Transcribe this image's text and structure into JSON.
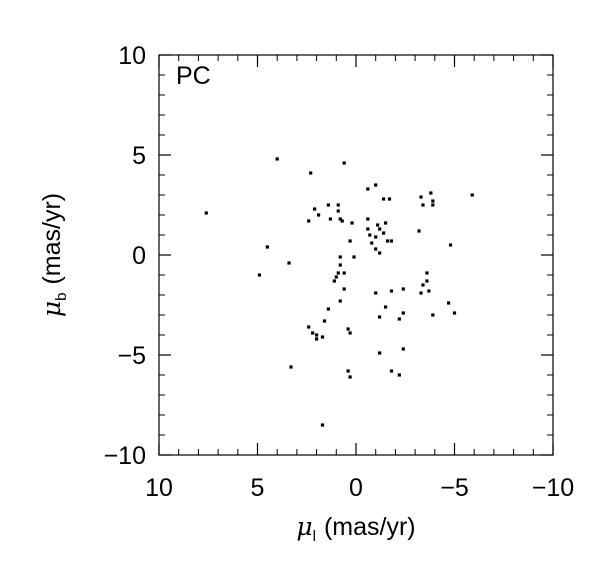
{
  "chart_data": {
    "type": "scatter",
    "panel_label": "PC",
    "xlabel": {
      "symbol": "μ",
      "subscript": "l",
      "unit": "(mas/yr)"
    },
    "ylabel": {
      "symbol": "μ",
      "subscript": "b",
      "unit": "(mas/yr)"
    },
    "xlim": [
      10,
      -10
    ],
    "ylim": [
      -10,
      10
    ],
    "x_ticks": [
      10,
      5,
      0,
      -5,
      -10
    ],
    "x_tick_labels": [
      "10",
      "5",
      "0",
      "−5",
      "−10"
    ],
    "y_ticks": [
      -10,
      -5,
      0,
      5,
      10
    ],
    "y_tick_labels": [
      "−10",
      "−5",
      "0",
      "5",
      "10"
    ],
    "grid": false,
    "marker_color": "#000000",
    "points": [
      [
        7.6,
        2.1
      ],
      [
        4.0,
        4.8
      ],
      [
        2.3,
        4.1
      ],
      [
        0.6,
        4.6
      ],
      [
        -0.6,
        3.3
      ],
      [
        -1.0,
        3.5
      ],
      [
        -1.4,
        2.8
      ],
      [
        -1.7,
        2.8
      ],
      [
        -3.3,
        2.9
      ],
      [
        -3.4,
        2.5
      ],
      [
        -3.8,
        3.1
      ],
      [
        -3.9,
        2.7
      ],
      [
        -3.9,
        2.5
      ],
      [
        -5.9,
        3.0
      ],
      [
        4.5,
        0.4
      ],
      [
        4.9,
        -1.0
      ],
      [
        3.4,
        -0.4
      ],
      [
        2.4,
        1.7
      ],
      [
        2.1,
        2.3
      ],
      [
        1.9,
        2.0
      ],
      [
        1.4,
        2.5
      ],
      [
        1.3,
        1.8
      ],
      [
        0.9,
        2.5
      ],
      [
        0.9,
        2.2
      ],
      [
        0.8,
        1.8
      ],
      [
        0.7,
        1.7
      ],
      [
        0.2,
        1.6
      ],
      [
        0.3,
        0.7
      ],
      [
        0.1,
        -0.1
      ],
      [
        -0.6,
        1.8
      ],
      [
        -0.6,
        1.3
      ],
      [
        -0.7,
        1.0
      ],
      [
        -0.8,
        0.6
      ],
      [
        -1.0,
        0.9
      ],
      [
        -1.1,
        1.5
      ],
      [
        -1.2,
        1.3
      ],
      [
        -1.4,
        1.1
      ],
      [
        -1.5,
        1.6
      ],
      [
        -1.6,
        0.7
      ],
      [
        -1.8,
        0.7
      ],
      [
        -1.0,
        0.3
      ],
      [
        -1.2,
        0.1
      ],
      [
        -3.2,
        1.2
      ],
      [
        -4.8,
        0.5
      ],
      [
        0.8,
        -0.1
      ],
      [
        0.8,
        -0.5
      ],
      [
        0.9,
        -0.9
      ],
      [
        1.0,
        -1.1
      ],
      [
        1.1,
        -1.3
      ],
      [
        0.6,
        -0.9
      ],
      [
        0.6,
        -1.7
      ],
      [
        0.8,
        -2.3
      ],
      [
        0.4,
        -3.7
      ],
      [
        -1.0,
        -1.9
      ],
      [
        -1.8,
        -1.8
      ],
      [
        -2.4,
        -1.7
      ],
      [
        -3.4,
        -1.5
      ],
      [
        -3.6,
        -1.3
      ],
      [
        -3.6,
        -0.9
      ],
      [
        -3.7,
        -1.8
      ],
      [
        -3.3,
        -1.9
      ],
      [
        -4.7,
        -2.4
      ],
      [
        -5.0,
        -2.9
      ],
      [
        -3.9,
        -3.0
      ],
      [
        -1.5,
        -2.6
      ],
      [
        -2.2,
        -3.2
      ],
      [
        -2.4,
        -2.9
      ],
      [
        -1.2,
        -3.1
      ],
      [
        1.4,
        -2.7
      ],
      [
        1.6,
        -3.3
      ],
      [
        2.4,
        -3.6
      ],
      [
        2.2,
        -3.9
      ],
      [
        2.0,
        -4.0
      ],
      [
        1.7,
        -4.1
      ],
      [
        2.0,
        -4.2
      ],
      [
        0.3,
        -3.9
      ],
      [
        -1.2,
        -4.9
      ],
      [
        -2.4,
        -4.7
      ],
      [
        -1.8,
        -5.8
      ],
      [
        -2.2,
        -6.0
      ],
      [
        3.3,
        -5.6
      ],
      [
        0.4,
        -5.8
      ],
      [
        0.3,
        -6.1
      ],
      [
        1.7,
        -8.5
      ]
    ]
  }
}
